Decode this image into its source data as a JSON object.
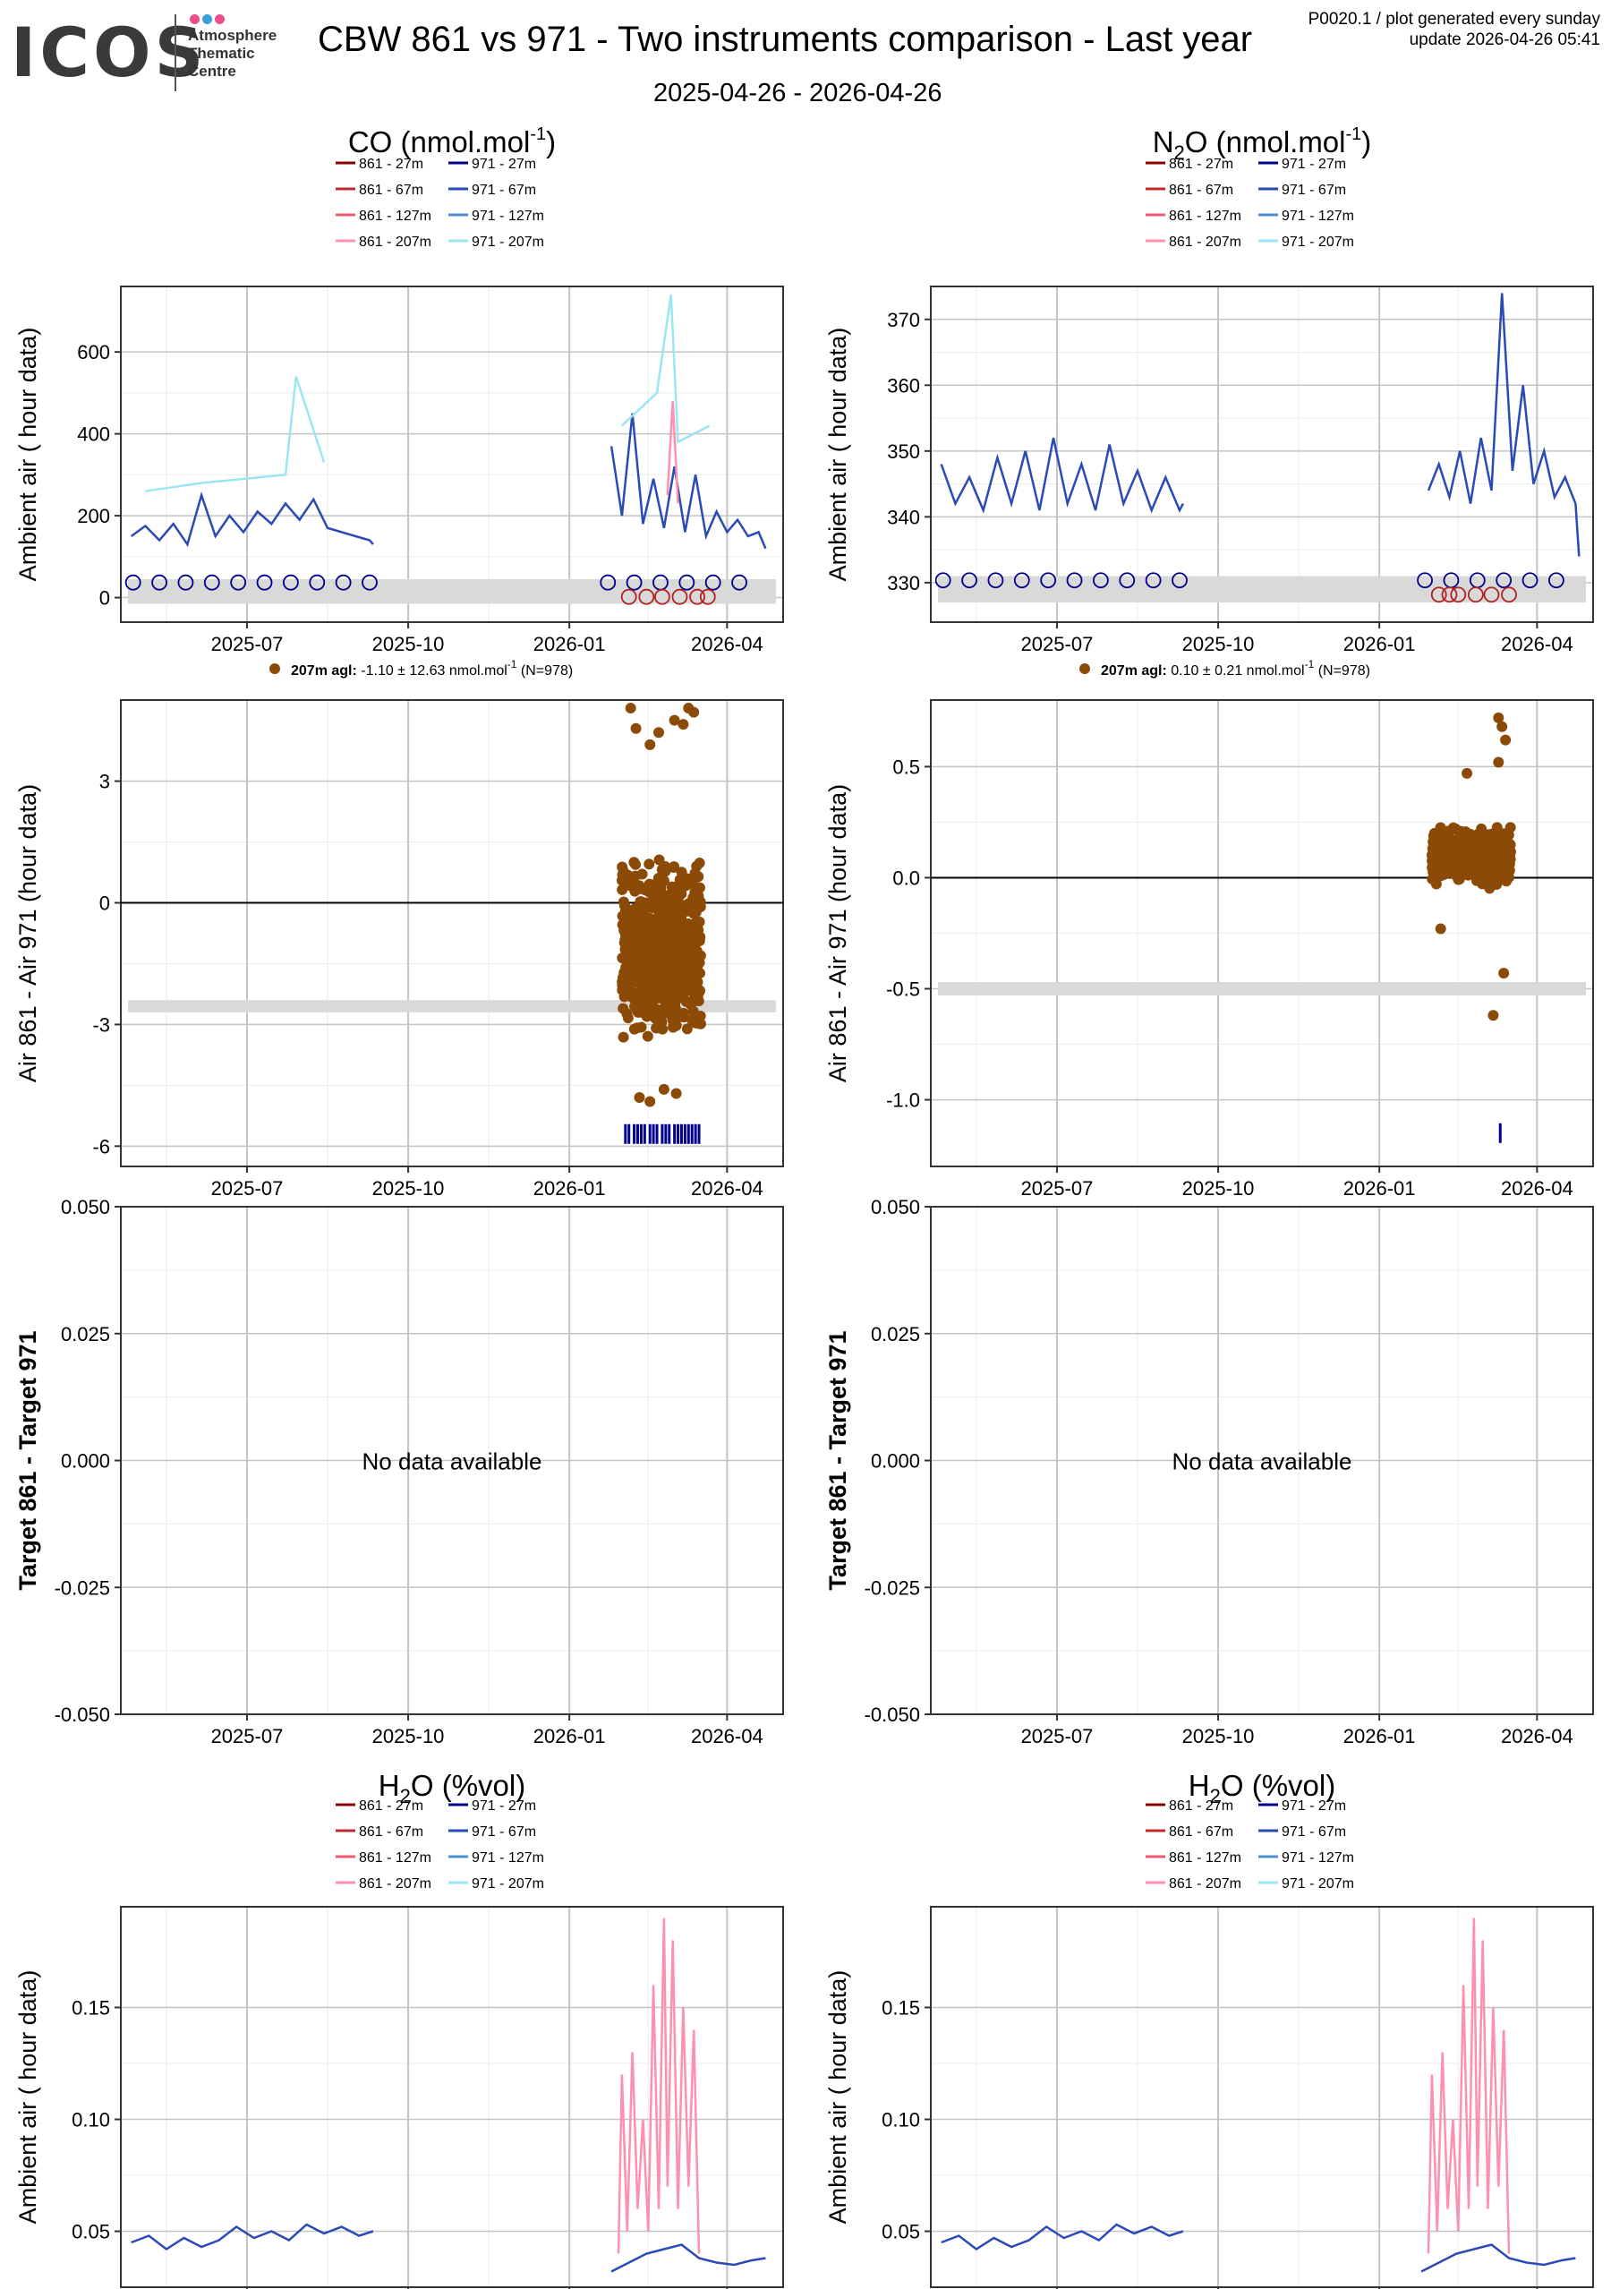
{
  "header": {
    "logo_text": "ICOS",
    "logo_sub": [
      "Atmosphere",
      "Thematic",
      "Centre"
    ],
    "logo_dot_colors": [
      "#e84f8c",
      "#3aa0dc",
      "#e84f8c"
    ],
    "title": "CBW 861 vs 971 - Two instruments comparison - Last year",
    "subtitle": "2025-04-26 - 2026-04-26",
    "corner_line1": "P0020.1 / plot generated every sunday",
    "corner_line2": "update  2026-04-26 05:41"
  },
  "legend": {
    "entries": [
      {
        "label": "861 - 27m",
        "color": "#8b0000"
      },
      {
        "label": "861 - 67m",
        "color": "#c0282d"
      },
      {
        "label": "861 - 127m",
        "color": "#ee5a6e"
      },
      {
        "label": "861 - 207m",
        "color": "#ff8fae"
      },
      {
        "label": "971 - 27m",
        "color": "#00008b"
      },
      {
        "label": "971 - 67m",
        "color": "#2a4ab5"
      },
      {
        "label": "971 - 127m",
        "color": "#4f8fcf"
      },
      {
        "label": "971 - 207m",
        "color": "#9ae6f4"
      }
    ]
  },
  "colors": {
    "scatter": "#8b4a06",
    "circle_971": "#00008b",
    "circle_861": "#b22222",
    "band": "#d9d9d9",
    "grid_major": "#c4c4c4",
    "grid_minor": "#ebebeb"
  },
  "x_axis": {
    "ticks": [
      "2025-07",
      "2025-10",
      "2026-01",
      "2026-04"
    ],
    "tick_days": [
      66,
      158,
      250,
      340
    ]
  },
  "chart_data": [
    {
      "id": "co_ambient",
      "type": "line",
      "title": "CO (nmol.mol",
      "title_sup": "-1",
      "title_end": ")",
      "ylabel": "Ambient air ( hour data)",
      "ylim": [
        -60,
        760
      ],
      "yticks": [
        0,
        200,
        400,
        600
      ],
      "series": [
        {
          "name": "971 - 67m",
          "color": "#2a4ab5",
          "segments": [
            {
              "x": [
                0,
                8,
                16,
                24,
                32,
                40,
                48,
                56,
                64,
                72,
                80,
                88,
                96,
                104,
                112,
                120,
                128,
                136,
                138
              ],
              "y": [
                150,
                175,
                140,
                180,
                130,
                250,
                150,
                200,
                160,
                210,
                180,
                230,
                190,
                240,
                170,
                160,
                150,
                140,
                130
              ]
            },
            {
              "x": [
                274,
                280,
                286,
                292,
                298,
                304,
                310,
                316,
                322,
                328,
                334,
                340,
                346,
                352,
                358,
                362
              ],
              "y": [
                370,
                200,
                450,
                180,
                290,
                170,
                320,
                160,
                300,
                150,
                210,
                160,
                190,
                150,
                160,
                120
              ]
            }
          ]
        },
        {
          "name": "971 - 207m",
          "color": "#9ae6f4",
          "segments": [
            {
              "x": [
                8,
                40,
                88,
                94,
                110
              ],
              "y": [
                260,
                280,
                300,
                540,
                330
              ]
            },
            {
              "x": [
                280,
                300,
                308,
                312,
                330
              ],
              "y": [
                420,
                500,
                740,
                380,
                420
              ]
            }
          ]
        },
        {
          "name": "861 - 207m",
          "color": "#ff8fae",
          "segments": [
            {
              "x": [
                306,
                309,
                312
              ],
              "y": [
                250,
                480,
                230
              ]
            }
          ]
        }
      ],
      "circles_971": [
        1,
        16,
        31,
        46,
        61,
        76,
        91,
        106,
        121,
        136,
        272,
        287,
        302,
        317,
        332,
        347
      ],
      "circles_861": [
        284,
        294,
        303,
        313,
        323,
        329
      ],
      "band": [
        -15,
        45
      ]
    },
    {
      "id": "n2o_ambient",
      "type": "line",
      "title": "N",
      "title_sub": "2",
      "title_mid": "O (nmol.mol",
      "title_sup": "-1",
      "title_end": ")",
      "ylabel": "Ambient air ( hour data)",
      "ylim": [
        324,
        375
      ],
      "yticks": [
        330,
        340,
        350,
        360,
        370
      ],
      "series": [
        {
          "name": "971 - 67m",
          "color": "#2a4ab5",
          "segments": [
            {
              "x": [
                0,
                8,
                16,
                24,
                32,
                40,
                48,
                56,
                64,
                72,
                80,
                88,
                96,
                104,
                112,
                120,
                128,
                136,
                138
              ],
              "y": [
                348,
                342,
                346,
                341,
                349,
                342,
                350,
                341,
                352,
                342,
                348,
                341,
                351,
                342,
                347,
                341,
                346,
                341,
                342
              ]
            },
            {
              "x": [
                278,
                284,
                290,
                296,
                302,
                308,
                314,
                320,
                326,
                332,
                338,
                344,
                350,
                356,
                362,
                364
              ],
              "y": [
                344,
                348,
                343,
                350,
                342,
                352,
                344,
                374,
                347,
                360,
                345,
                350,
                343,
                346,
                342,
                334
              ]
            }
          ]
        }
      ],
      "circles_971": [
        1,
        16,
        31,
        46,
        61,
        76,
        91,
        106,
        121,
        136,
        276,
        291,
        306,
        321,
        336,
        351
      ],
      "circles_861": [
        284,
        290,
        295,
        305,
        314,
        324
      ],
      "band": [
        327,
        331
      ]
    },
    {
      "id": "co_diff",
      "type": "scatter",
      "legend": {
        "bold": "207m agl:",
        "text": "-1.10 ± 12.63 nmol.mol",
        "sup": "-1",
        "n": "(N=978)"
      },
      "ylabel": "Air 861 - Air 971 (hour data)",
      "ylim": [
        -6.5,
        5
      ],
      "yticks": [
        -6,
        -3,
        0,
        3
      ],
      "ytick_labels": [
        "-6",
        "-3",
        "0",
        "3"
      ],
      "zero_line": 0,
      "band": [
        -2.7,
        -2.4
      ],
      "cluster": {
        "x0": 280,
        "x1": 325,
        "y_center": -1.1,
        "y_spread": 2.0,
        "count": 700
      },
      "points": [
        {
          "x": 285,
          "y": 4.8
        },
        {
          "x": 288,
          "y": 4.3
        },
        {
          "x": 296,
          "y": 3.9
        },
        {
          "x": 301,
          "y": 4.2
        },
        {
          "x": 310,
          "y": 4.5
        },
        {
          "x": 315,
          "y": 4.4
        },
        {
          "x": 318,
          "y": 4.8
        },
        {
          "x": 321,
          "y": 4.7
        },
        {
          "x": 290,
          "y": -4.8
        },
        {
          "x": 296,
          "y": -4.9
        },
        {
          "x": 304,
          "y": -4.6
        },
        {
          "x": 311,
          "y": -4.7
        }
      ],
      "rugs": [
        282,
        284,
        287,
        289,
        291,
        293,
        296,
        298,
        300,
        303,
        305,
        307,
        310,
        312,
        314,
        316,
        318,
        320,
        322,
        324
      ],
      "rug_y": -5.7
    },
    {
      "id": "n2o_diff",
      "type": "scatter",
      "legend": {
        "bold": "207m agl:",
        "text": "0.10 ± 0.21 nmol.mol",
        "sup": "-1",
        "n": "(N=978)"
      },
      "ylabel": "Air 861 - Air 971 (hour data)",
      "ylim": [
        -1.3,
        0.8
      ],
      "yticks": [
        -1.0,
        -0.5,
        0.0,
        0.5
      ],
      "ytick_labels": [
        "-1.0",
        "-0.5",
        "0.0",
        "0.5"
      ],
      "zero_line": 0,
      "band": [
        -0.53,
        -0.47
      ],
      "cluster": {
        "x0": 280,
        "x1": 325,
        "y_center": 0.1,
        "y_spread": 0.12,
        "count": 700
      },
      "points": [
        {
          "x": 318,
          "y": 0.72
        },
        {
          "x": 320,
          "y": 0.68
        },
        {
          "x": 322,
          "y": 0.62
        },
        {
          "x": 318,
          "y": 0.52
        },
        {
          "x": 321,
          "y": -0.43
        },
        {
          "x": 315,
          "y": -0.62
        },
        {
          "x": 285,
          "y": -0.23
        },
        {
          "x": 300,
          "y": 0.47
        }
      ],
      "rugs": [
        319
      ],
      "rug_y": -1.15
    },
    {
      "id": "co_target",
      "type": "empty",
      "ylabel": "Target 861 - Target 971",
      "ylim": [
        -0.05,
        0.05
      ],
      "yticks": [
        -0.05,
        -0.025,
        0,
        0.025,
        0.05
      ],
      "ytick_labels": [
        "-0.050",
        "-0.025",
        "0.000",
        "0.025",
        "0.050"
      ],
      "message": "No data available"
    },
    {
      "id": "n2o_target",
      "type": "empty",
      "ylabel": "Target 861 - Target 971",
      "ylim": [
        -0.05,
        0.05
      ],
      "yticks": [
        -0.05,
        -0.025,
        0,
        0.025,
        0.05
      ],
      "ytick_labels": [
        "-0.050",
        "-0.025",
        "0.000",
        "0.025",
        "0.050"
      ],
      "message": "No data available"
    },
    {
      "id": "h2o_left",
      "type": "line",
      "title": "H",
      "title_sub": "2",
      "title_mid": "O (%vol)",
      "title_sup": "",
      "title_end": "",
      "ylabel": "Ambient air ( hour data)",
      "ylim": [
        0.025,
        0.195
      ],
      "yticks": [
        0.05,
        0.1,
        0.15
      ],
      "ytick_labels": [
        "0.05",
        "0.10",
        "0.15"
      ],
      "series": [
        {
          "name": "861 - 207m",
          "color": "#ff8fae",
          "segments": [
            {
              "x": [
                278,
                280,
                283,
                286,
                289,
                292,
                295,
                298,
                301,
                304,
                306,
                309,
                312,
                315,
                318,
                321,
                324
              ],
              "y": [
                0.04,
                0.12,
                0.05,
                0.13,
                0.06,
                0.1,
                0.05,
                0.16,
                0.06,
                0.19,
                0.07,
                0.18,
                0.06,
                0.15,
                0.07,
                0.14,
                0.04
              ]
            }
          ]
        },
        {
          "name": "971 - 67m",
          "color": "#2a4ab5",
          "segments": [
            {
              "x": [
                0,
                10,
                20,
                30,
                40,
                50,
                60,
                70,
                80,
                90,
                100,
                110,
                120,
                130,
                138
              ],
              "y": [
                0.045,
                0.048,
                0.042,
                0.047,
                0.043,
                0.046,
                0.052,
                0.047,
                0.05,
                0.046,
                0.053,
                0.049,
                0.052,
                0.048,
                0.05
              ]
            },
            {
              "x": [
                274,
                284,
                294,
                304,
                314,
                324,
                334,
                344,
                354,
                362
              ],
              "y": [
                0.032,
                0.036,
                0.04,
                0.042,
                0.044,
                0.038,
                0.036,
                0.035,
                0.037,
                0.038
              ]
            }
          ]
        }
      ]
    },
    {
      "id": "h2o_right",
      "type": "line",
      "title": "H",
      "title_sub": "2",
      "title_mid": "O (%vol)",
      "title_sup": "",
      "title_end": "",
      "ylabel": "Ambient air ( hour data)",
      "ylim": [
        0.025,
        0.195
      ],
      "yticks": [
        0.05,
        0.1,
        0.15
      ],
      "ytick_labels": [
        "0.05",
        "0.10",
        "0.15"
      ],
      "series": [
        {
          "name": "861 - 207m",
          "color": "#ff8fae",
          "segments": [
            {
              "x": [
                278,
                280,
                283,
                286,
                289,
                292,
                295,
                298,
                301,
                304,
                306,
                309,
                312,
                315,
                318,
                321,
                324
              ],
              "y": [
                0.04,
                0.12,
                0.05,
                0.13,
                0.06,
                0.1,
                0.05,
                0.16,
                0.06,
                0.19,
                0.07,
                0.18,
                0.06,
                0.15,
                0.07,
                0.14,
                0.04
              ]
            }
          ]
        },
        {
          "name": "971 - 67m",
          "color": "#2a4ab5",
          "segments": [
            {
              "x": [
                0,
                10,
                20,
                30,
                40,
                50,
                60,
                70,
                80,
                90,
                100,
                110,
                120,
                130,
                138
              ],
              "y": [
                0.045,
                0.048,
                0.042,
                0.047,
                0.043,
                0.046,
                0.052,
                0.047,
                0.05,
                0.046,
                0.053,
                0.049,
                0.052,
                0.048,
                0.05
              ]
            },
            {
              "x": [
                274,
                284,
                294,
                304,
                314,
                324,
                334,
                344,
                354,
                362
              ],
              "y": [
                0.032,
                0.036,
                0.04,
                0.042,
                0.044,
                0.038,
                0.036,
                0.035,
                0.037,
                0.038
              ]
            }
          ]
        }
      ]
    }
  ]
}
